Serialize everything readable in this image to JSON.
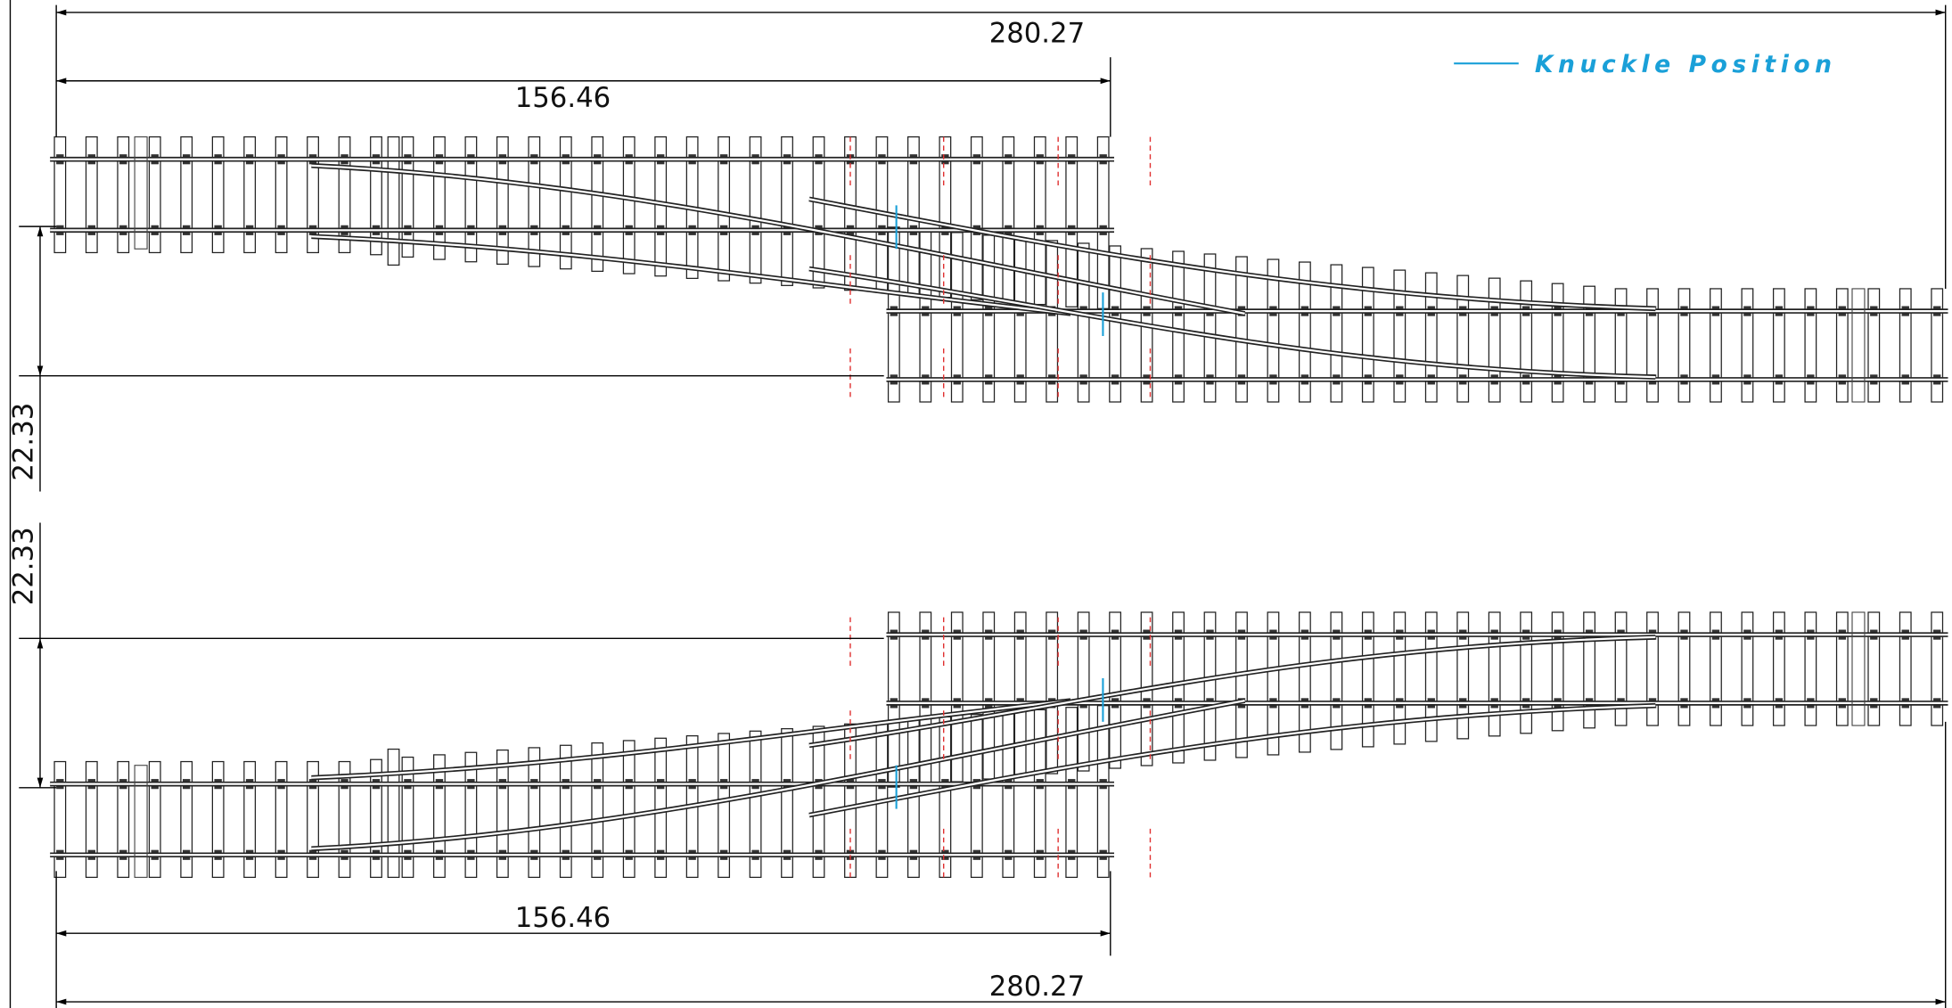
{
  "legend": {
    "label": "Knuckle Position"
  },
  "top_view": {
    "overall_length": 280.27,
    "turnout_length": 156.46,
    "track_spacing": 22.33
  },
  "bottom_view": {
    "overall_length": 280.27,
    "turnout_length": 156.46,
    "track_spacing": 22.33
  }
}
